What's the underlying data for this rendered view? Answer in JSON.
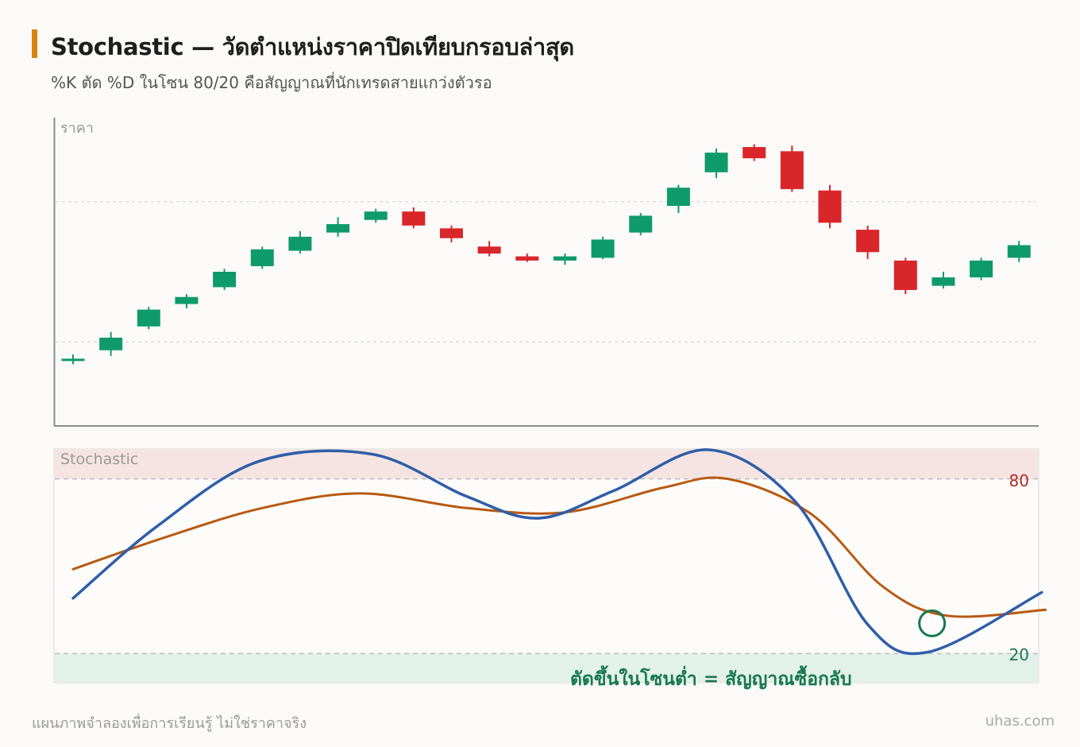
{
  "header": {
    "title": "Stochastic — วัดตำแหน่งราคาปิดเทียบกรอบล่าสุด",
    "subtitle": "%K ตัด %D ในโซน 80/20 คือสัญญาณที่นักเทรดสายแกว่งตัวรอ"
  },
  "footer": {
    "note": "แผนภาพจำลองเพื่อการเรียนรู้ ไม่ใช่ราคาจริง",
    "brand": "uhas.com"
  },
  "colors": {
    "accent": "#d9820f",
    "bullish": "#0f9a6c",
    "bearish": "#d9262b",
    "k_line": "#2f5ea8",
    "d_line": "#b85a12",
    "overbought_zone": "#f6e4e2",
    "oversold_zone": "#e2f1ea",
    "signal_marker": "#17784f"
  },
  "chart_data": [
    {
      "type": "candlestick",
      "ylabel": "ราคา",
      "candles": [
        {
          "open": 47,
          "close": 48,
          "high": 51,
          "low": 44
        },
        {
          "open": 54,
          "close": 63,
          "high": 67,
          "low": 50
        },
        {
          "open": 71,
          "close": 83,
          "high": 85,
          "low": 69
        },
        {
          "open": 87,
          "close": 92,
          "high": 94,
          "low": 84
        },
        {
          "open": 99,
          "close": 110,
          "high": 112,
          "low": 97
        },
        {
          "open": 114,
          "close": 126,
          "high": 128,
          "low": 112
        },
        {
          "open": 125,
          "close": 135,
          "high": 139,
          "low": 123
        },
        {
          "open": 138,
          "close": 144,
          "high": 149,
          "low": 135
        },
        {
          "open": 147,
          "close": 153,
          "high": 155,
          "low": 145
        },
        {
          "open": 153,
          "close": 143,
          "high": 156,
          "low": 141
        },
        {
          "open": 141,
          "close": 134,
          "high": 143,
          "low": 131
        },
        {
          "open": 128,
          "close": 123,
          "high": 132,
          "low": 121
        },
        {
          "open": 121,
          "close": 118,
          "high": 123,
          "low": 117
        },
        {
          "open": 118,
          "close": 121,
          "high": 123,
          "low": 115
        },
        {
          "open": 120,
          "close": 133,
          "high": 135,
          "low": 119
        },
        {
          "open": 138,
          "close": 150,
          "high": 152,
          "low": 136
        },
        {
          "open": 157,
          "close": 170,
          "high": 172,
          "low": 152
        },
        {
          "open": 181,
          "close": 195,
          "high": 198,
          "low": 177
        },
        {
          "open": 199,
          "close": 191,
          "high": 201,
          "low": 189
        },
        {
          "open": 196,
          "close": 169,
          "high": 200,
          "low": 167
        },
        {
          "open": 168,
          "close": 145,
          "high": 172,
          "low": 141
        },
        {
          "open": 140,
          "close": 124,
          "high": 143,
          "low": 119
        },
        {
          "open": 118,
          "close": 97,
          "high": 120,
          "low": 94
        },
        {
          "open": 100,
          "close": 106,
          "high": 110,
          "low": 98
        },
        {
          "open": 106,
          "close": 118,
          "high": 120,
          "low": 104
        },
        {
          "open": 120,
          "close": 129,
          "high": 132,
          "low": 117
        }
      ],
      "gridlines": [
        60,
        160
      ],
      "ylim": [
        0,
        220
      ],
      "grid": true
    },
    {
      "type": "line",
      "title": "Stochastic",
      "ylim": [
        10,
        90
      ],
      "levels": [
        80,
        20
      ],
      "level_labels": [
        "80",
        "20"
      ],
      "series": [
        {
          "key": "K",
          "points": [
            [
              0,
              39
            ],
            [
              2.25,
              64
            ],
            [
              4.9,
              86
            ],
            [
              7.9,
              88.5
            ],
            [
              10.4,
              74
            ],
            [
              12.3,
              66.5
            ],
            [
              14.3,
              76
            ],
            [
              16.8,
              90
            ],
            [
              19.1,
              72
            ],
            [
              21,
              30
            ],
            [
              22.6,
              20.5
            ],
            [
              25.6,
              41
            ]
          ]
        },
        {
          "key": "D",
          "points": [
            [
              0,
              49
            ],
            [
              2.45,
              60
            ],
            [
              5,
              70
            ],
            [
              7.6,
              75
            ],
            [
              10.4,
              70
            ],
            [
              13,
              68.5
            ],
            [
              15.6,
              77
            ],
            [
              17.3,
              80
            ],
            [
              19.5,
              68
            ],
            [
              21.4,
              43
            ],
            [
              23.1,
              33
            ],
            [
              25.7,
              35
            ]
          ]
        }
      ],
      "annotation": {
        "text": "ตัดขึ้นในโซนต่ำ = สัญญาณซื้อกลับ",
        "x": 22.7,
        "y": 32
      }
    }
  ]
}
